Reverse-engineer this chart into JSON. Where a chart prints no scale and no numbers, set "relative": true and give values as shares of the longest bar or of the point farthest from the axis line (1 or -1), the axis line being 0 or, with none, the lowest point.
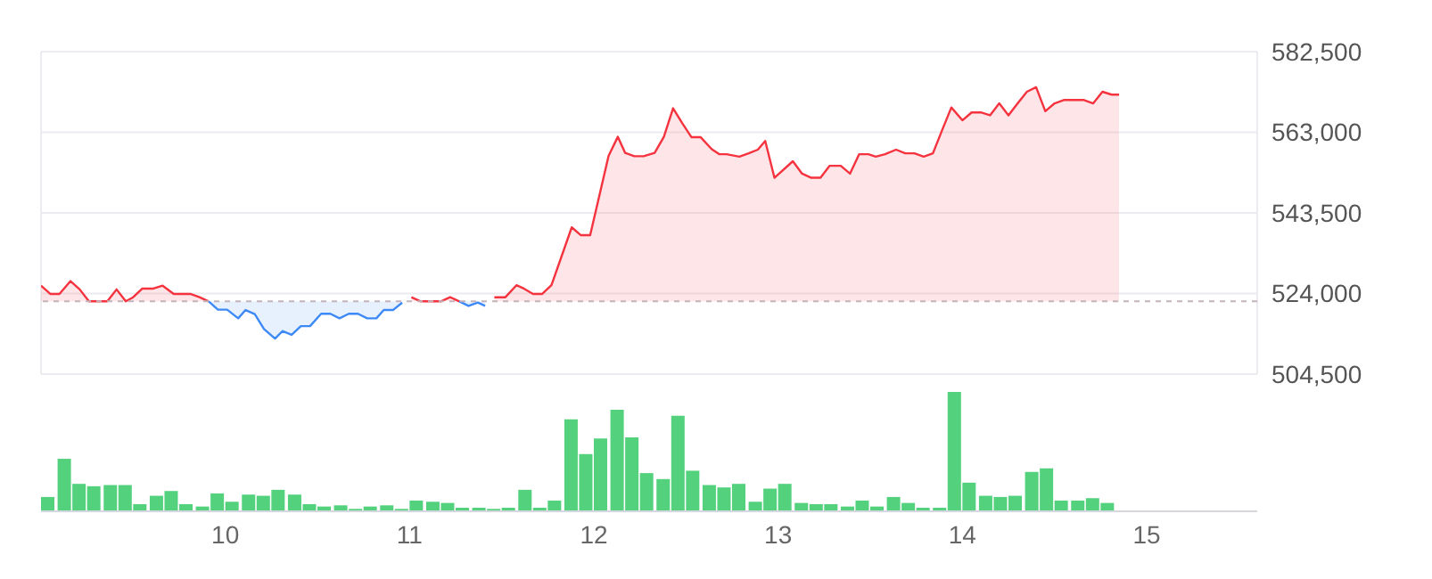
{
  "chart_data": [
    {
      "type": "area",
      "x": [
        9.0,
        9.05,
        9.1,
        9.16,
        9.21,
        9.26,
        9.3,
        9.36,
        9.41,
        9.46,
        9.5,
        9.55,
        9.61,
        9.66,
        9.72,
        9.76,
        9.81,
        9.86,
        9.91,
        9.96,
        10.01,
        10.07,
        10.11,
        10.16,
        10.21,
        10.27,
        10.31,
        10.36,
        10.41,
        10.46,
        10.52,
        10.57,
        10.62,
        10.67,
        10.72,
        10.77,
        10.82,
        10.86,
        10.91,
        10.96,
        11.01,
        11.06,
        11.11,
        11.17,
        11.22,
        11.27,
        11.32,
        11.37,
        11.41,
        11.46,
        11.52,
        11.58,
        11.62,
        11.67,
        11.72,
        11.77,
        11.88,
        11.93,
        11.98,
        12.08,
        12.13,
        12.17,
        12.22,
        12.27,
        12.33,
        12.38,
        12.43,
        12.48,
        12.53,
        12.58,
        12.64,
        12.68,
        12.72,
        12.79,
        12.84,
        12.89,
        12.93,
        12.98,
        13.08,
        13.13,
        13.18,
        13.23,
        13.28,
        13.34,
        13.39,
        13.44,
        13.49,
        13.53,
        13.58,
        13.64,
        13.69,
        13.74,
        13.79,
        13.84,
        13.89,
        13.94,
        14.0,
        14.05,
        14.1,
        14.15,
        14.2,
        14.25,
        14.3,
        14.35,
        14.4,
        14.45,
        14.5,
        14.55,
        14.61,
        14.66,
        14.71,
        14.76,
        14.81,
        14.85
      ],
      "series": [
        {
          "color": "#f5333f",
          "values": [
            525900,
            523900,
            523900,
            527000,
            525000,
            522100,
            522100,
            522100,
            525000,
            522100,
            523100,
            525200,
            525200,
            525900,
            523900,
            523900,
            523900,
            523100,
            522100,
            null,
            null,
            null,
            null,
            null,
            null,
            null,
            null,
            null,
            null,
            null,
            null,
            null,
            null,
            null,
            null,
            null,
            null,
            null,
            null,
            null,
            523100,
            522100,
            522100,
            522100,
            523100,
            522100,
            null,
            null,
            null,
            523100,
            523100,
            526000,
            525200,
            523900,
            523900,
            526000,
            540000,
            538100,
            538100,
            557300,
            561900,
            558000,
            557200,
            557200,
            558000,
            561900,
            568800,
            565200,
            561800,
            561800,
            558900,
            557700,
            557700,
            557100,
            557900,
            558800,
            560900,
            552000,
            556000,
            553000,
            552000,
            552000,
            554900,
            554900,
            553000,
            557700,
            557700,
            557100,
            557700,
            558800,
            557900,
            557900,
            557100,
            557900,
            563500,
            569000,
            565900,
            567800,
            567800,
            567100,
            570000,
            567100,
            570000,
            572800,
            573900,
            568100,
            570000,
            570800,
            570800,
            570800,
            570000,
            572800,
            572100,
            572100
          ]
        },
        {
          "type": "line",
          "color": "#3d8af7",
          "lower": [
            null,
            null,
            null,
            null,
            null,
            null,
            null,
            null,
            null,
            null,
            null,
            null,
            null,
            null,
            null,
            null,
            null,
            null,
            522100,
            520100,
            520100,
            518000,
            520000,
            519000,
            515400,
            513100,
            514900,
            514000,
            516100,
            516100,
            519100,
            519100,
            518000,
            519100,
            519100,
            518000,
            518000,
            520000,
            520000,
            521800,
            null,
            null,
            null,
            null,
            null,
            522100,
            521000,
            521800,
            521000,
            null,
            null,
            null,
            null,
            null,
            null,
            null,
            null,
            null,
            null,
            null,
            null,
            null,
            null,
            null,
            null,
            null,
            null,
            null,
            null,
            null,
            null,
            null,
            null,
            null,
            null,
            null,
            null,
            null,
            null,
            null,
            null,
            null,
            null,
            null,
            null,
            null,
            null,
            null,
            null,
            null,
            null,
            null,
            null,
            null,
            null,
            null,
            null,
            null,
            null,
            null,
            null,
            null,
            null,
            null,
            null,
            null,
            null,
            null,
            null,
            null,
            null,
            null,
            null,
            null
          ],
          "upper": [
            null,
            null,
            null,
            null,
            null,
            null,
            null,
            null,
            null,
            null,
            null,
            null,
            null,
            null,
            null,
            null,
            null,
            null,
            522100,
            522100,
            522100,
            522100,
            522100,
            522100,
            522100,
            522100,
            522100,
            522100,
            522100,
            522100,
            522100,
            522100,
            522100,
            522100,
            522100,
            522100,
            522100,
            522100,
            522100,
            522100,
            null,
            null,
            null,
            null,
            null,
            522100,
            522100,
            522100,
            522100,
            null,
            null,
            null,
            null,
            null,
            null,
            null,
            null,
            null,
            null,
            null,
            null,
            null,
            null,
            null,
            null,
            null,
            null,
            null,
            null,
            null,
            null,
            null,
            null,
            null,
            null,
            null,
            null,
            null,
            null,
            null,
            null,
            null,
            null,
            null,
            null,
            null,
            null,
            null,
            null,
            null,
            null,
            null,
            null,
            null,
            null,
            null,
            null,
            null,
            null,
            null,
            null,
            null,
            null,
            null,
            null,
            null,
            null,
            null,
            null,
            null,
            null,
            null,
            null,
            null
          ],
          "values": [
            null,
            null,
            null,
            null,
            null,
            null,
            null,
            null,
            null,
            null,
            null,
            null,
            null,
            null,
            null,
            null,
            null,
            null,
            522100,
            520100,
            520100,
            518000,
            520000,
            519000,
            515400,
            513100,
            514900,
            514000,
            516100,
            516100,
            519100,
            519100,
            518000,
            519100,
            519100,
            518000,
            518000,
            520000,
            520000,
            521800,
            null,
            null,
            null,
            null,
            null,
            522100,
            521000,
            521800,
            521000,
            null,
            null,
            null,
            null,
            null,
            null,
            null,
            null,
            null,
            null,
            null,
            null,
            null,
            null,
            null,
            null,
            null,
            null,
            null,
            null,
            null,
            null,
            null,
            null,
            null,
            null,
            null,
            null,
            null,
            null,
            null,
            null,
            null,
            null,
            null,
            null,
            null,
            null,
            null,
            null,
            null,
            null,
            null,
            null,
            null,
            null,
            null,
            null,
            null,
            null,
            null,
            null,
            null,
            null,
            null,
            null,
            null,
            null,
            null,
            null,
            null,
            null,
            null,
            null,
            null
          ]
        }
      ],
      "xlim": [
        9,
        15.6
      ],
      "xticks": [
        10,
        12,
        14
      ],
      "ylim": [
        504500,
        582500
      ],
      "yticks": [
        {
          "value": 504500,
          "label": "504,500"
        },
        {
          "value": 524000,
          "label": "524,000"
        },
        {
          "value": 543500,
          "label": "543,500"
        },
        {
          "value": 563000,
          "label": "563,000"
        },
        {
          "value": 582500,
          "label": "582,500"
        }
      ],
      "grid": true,
      "tick_labels": "y",
      "ref_lines": [
        {
          "axis": "y",
          "value": 522100,
          "color": "#c4b4ba",
          "line_style": "dashed"
        }
      ]
    },
    {
      "type": "bar",
      "relative": true,
      "color": "#53d17d",
      "x": [
        9.04,
        9.13,
        9.21,
        9.29,
        9.38,
        9.46,
        9.54,
        9.63,
        9.71,
        9.79,
        9.88,
        9.96,
        10.04,
        10.13,
        10.21,
        10.29,
        10.38,
        10.46,
        10.54,
        10.63,
        10.71,
        10.79,
        10.88,
        10.96,
        11.04,
        11.13,
        11.21,
        11.29,
        11.38,
        11.46,
        11.54,
        11.63,
        11.71,
        11.79,
        11.88,
        11.96,
        12.04,
        12.13,
        12.21,
        12.29,
        12.38,
        12.46,
        12.54,
        12.63,
        12.71,
        12.79,
        12.88,
        12.96,
        13.04,
        13.13,
        13.21,
        13.29,
        13.38,
        13.46,
        13.54,
        13.63,
        13.71,
        13.79,
        13.88,
        13.96,
        14.04,
        14.13,
        14.21,
        14.29,
        14.38,
        14.46,
        14.54,
        14.63,
        14.71,
        14.79
      ],
      "values": [
        0.12,
        0.44,
        0.23,
        0.21,
        0.22,
        0.22,
        0.06,
        0.13,
        0.17,
        0.06,
        0.04,
        0.15,
        0.08,
        0.14,
        0.13,
        0.18,
        0.14,
        0.06,
        0.04,
        0.05,
        0.02,
        0.04,
        0.05,
        0.02,
        0.09,
        0.08,
        0.07,
        0.03,
        0.03,
        0.02,
        0.03,
        0.18,
        0.03,
        0.09,
        0.77,
        0.48,
        0.61,
        0.85,
        0.62,
        0.32,
        0.27,
        0.8,
        0.34,
        0.22,
        0.2,
        0.23,
        0.08,
        0.19,
        0.23,
        0.07,
        0.06,
        0.06,
        0.04,
        0.09,
        0.04,
        0.12,
        0.07,
        0.03,
        0.03,
        1,
        0.24,
        0.13,
        0.12,
        0.13,
        0.33,
        0.36,
        0.09,
        0.09,
        0.11,
        0.07
      ],
      "xlim": [
        9,
        15.6
      ],
      "xticks": [
        10,
        11,
        12,
        13,
        14,
        15
      ],
      "tick_labels": "x"
    }
  ]
}
